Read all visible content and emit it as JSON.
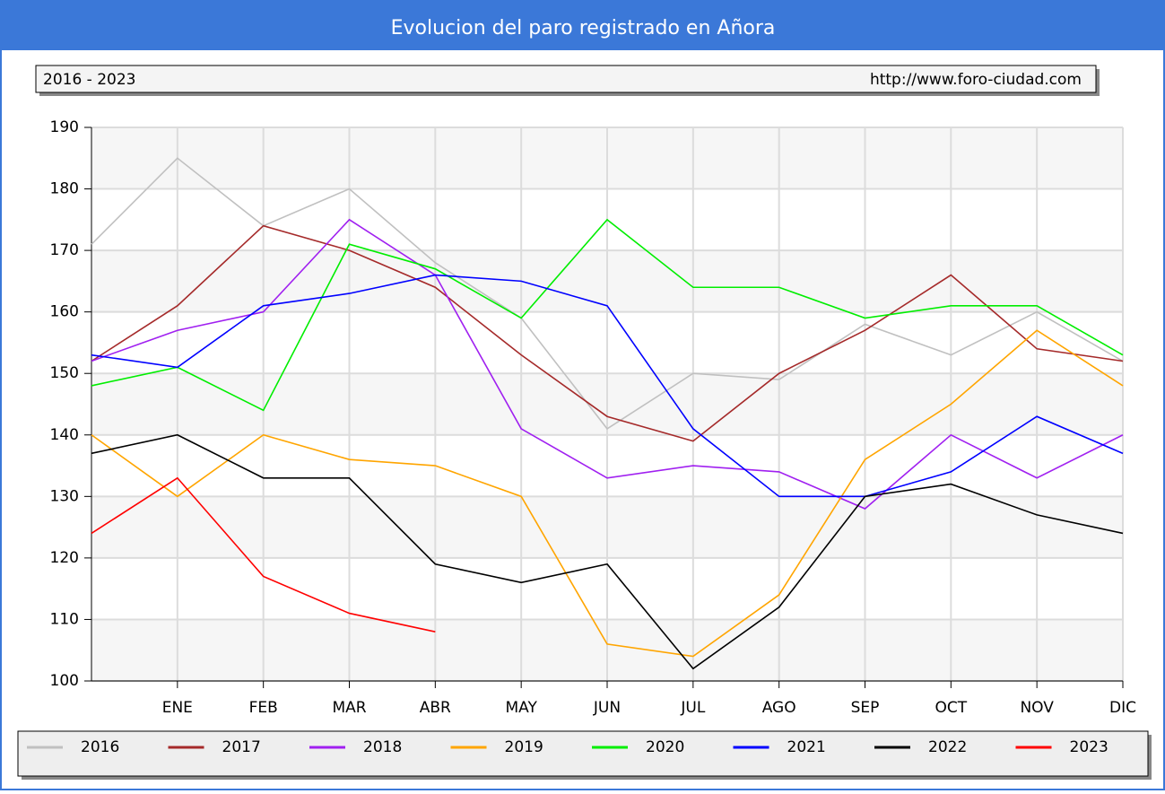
{
  "chart_data": {
    "type": "line",
    "title": "Evolucion del paro registrado en Añora",
    "subtitle": "2016 - 2023",
    "source": "http://www.foro-ciudad.com",
    "categories": [
      null,
      "ENE",
      "FEB",
      "MAR",
      "ABR",
      "MAY",
      "JUN",
      "JUL",
      "AGO",
      "SEP",
      "OCT",
      "NOV",
      "DIC"
    ],
    "ylim": [
      100,
      190
    ],
    "yticks": [
      100,
      110,
      120,
      130,
      140,
      150,
      160,
      170,
      180,
      190
    ],
    "grid": true,
    "legend": "bottom",
    "series": [
      {
        "name": "2016",
        "color": "#c0c0c0",
        "values": [
          171,
          185,
          174,
          180,
          168,
          159,
          141,
          150,
          149,
          158,
          153,
          160,
          152
        ]
      },
      {
        "name": "2017",
        "color": "#a52a2a",
        "values": [
          152,
          161,
          174,
          170,
          164,
          153,
          143,
          139,
          150,
          157,
          166,
          154,
          152
        ]
      },
      {
        "name": "2018",
        "color": "#a020f0",
        "values": [
          152,
          157,
          160,
          175,
          166,
          141,
          133,
          135,
          134,
          128,
          140,
          133,
          140
        ]
      },
      {
        "name": "2019",
        "color": "#ffa500",
        "values": [
          140,
          130,
          140,
          136,
          135,
          130,
          106,
          104,
          114,
          136,
          145,
          157,
          148
        ]
      },
      {
        "name": "2020",
        "color": "#00ee00",
        "values": [
          148,
          151,
          144,
          171,
          167,
          159,
          175,
          164,
          164,
          159,
          161,
          161,
          153
        ]
      },
      {
        "name": "2021",
        "color": "#0000ff",
        "values": [
          153,
          151,
          161,
          163,
          166,
          165,
          161,
          141,
          130,
          130,
          134,
          143,
          137
        ]
      },
      {
        "name": "2022",
        "color": "#000000",
        "values": [
          137,
          140,
          133,
          133,
          119,
          116,
          119,
          102,
          112,
          130,
          132,
          127,
          124
        ]
      },
      {
        "name": "2023",
        "color": "#ff0000",
        "values": [
          124,
          133,
          117,
          111,
          108,
          null,
          null,
          null,
          null,
          null,
          null,
          null,
          null
        ]
      }
    ]
  }
}
